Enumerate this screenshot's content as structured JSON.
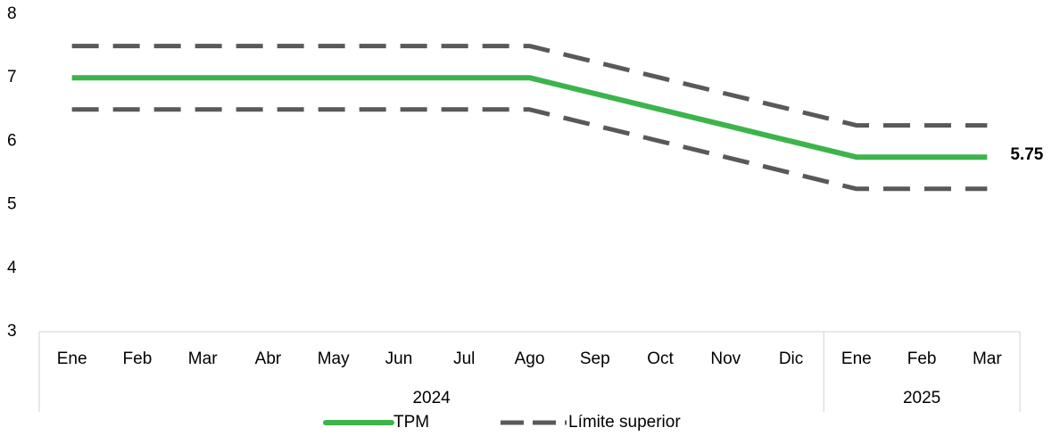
{
  "chart_data": {
    "type": "line",
    "categories": [
      "Ene",
      "Feb",
      "Mar",
      "Abr",
      "May",
      "Jun",
      "Jul",
      "Ago",
      "Sep",
      "Oct",
      "Nov",
      "Dic",
      "Ene",
      "Feb",
      "Mar"
    ],
    "groups": [
      {
        "label": "2024",
        "span": 12
      },
      {
        "label": "2025",
        "span": 3
      }
    ],
    "series": [
      {
        "name": "TPM",
        "color": "#3cb44b",
        "dash": false,
        "values": [
          7,
          7,
          7,
          7,
          7,
          7,
          7,
          7,
          6.75,
          6.5,
          6.25,
          6.0,
          5.75,
          5.75,
          5.75
        ]
      },
      {
        "name": "Límite superior",
        "color": "#595959",
        "dash": true,
        "values": [
          7.5,
          7.5,
          7.5,
          7.5,
          7.5,
          7.5,
          7.5,
          7.5,
          7.25,
          7.0,
          6.75,
          6.5,
          6.25,
          6.25,
          6.25
        ]
      },
      {
        "color": "#595959",
        "dash": true,
        "values": [
          6.5,
          6.5,
          6.5,
          6.5,
          6.5,
          6.5,
          6.5,
          6.5,
          6.25,
          6.0,
          5.75,
          5.5,
          5.25,
          5.25,
          5.25
        ]
      }
    ],
    "ylim": [
      3,
      8
    ],
    "yticks": [
      3,
      4,
      5,
      6,
      7,
      8
    ],
    "grid": false,
    "legend": "bottom"
  }
}
